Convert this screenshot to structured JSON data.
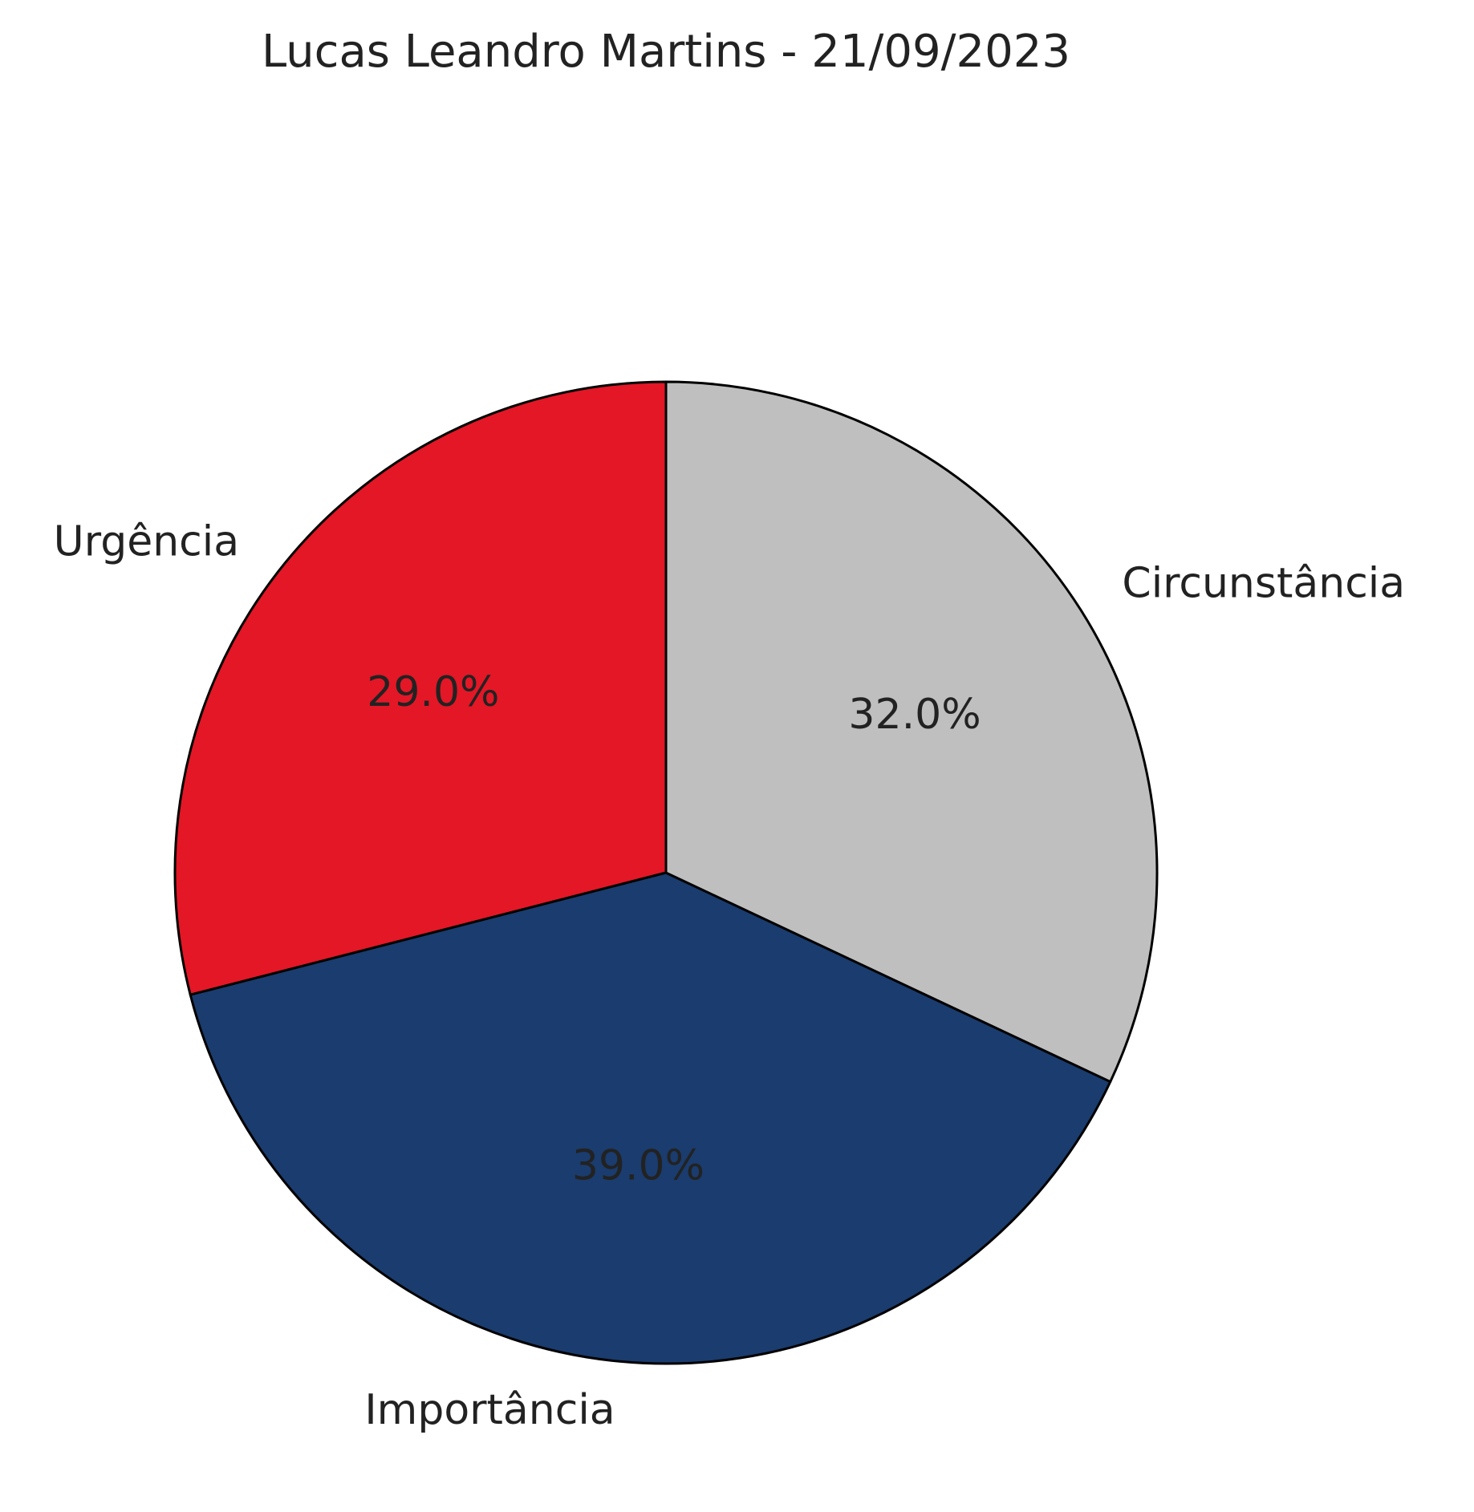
{
  "chart_data": {
    "type": "pie",
    "title": "Lucas Leandro Martins - 21/09/2023",
    "start_angle_deg": 90,
    "direction": "counterclockwise",
    "slices": [
      {
        "label": "Urgência",
        "value": 29.0,
        "pct_label": "29.0%",
        "color": "#E31726"
      },
      {
        "label": "Importância",
        "value": 39.0,
        "pct_label": "39.0%",
        "color": "#1A3C6E"
      },
      {
        "label": "Circunstância",
        "value": 32.0,
        "pct_label": "32.0%",
        "color": "#BEBFBE"
      }
    ]
  }
}
